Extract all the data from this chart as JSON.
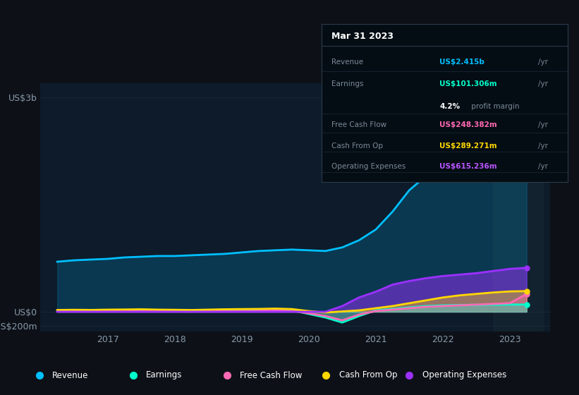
{
  "bg_color": "#0d1117",
  "plot_bg_color": "#0d1b2a",
  "revenue_color": "#00bfff",
  "earnings_color": "#00ffcc",
  "fcf_color": "#ff69b4",
  "cashfromop_color": "#ffd700",
  "opex_color": "#9b30ff",
  "line_width": 2.0,
  "legend_items": [
    "Revenue",
    "Earnings",
    "Free Cash Flow",
    "Cash From Op",
    "Operating Expenses"
  ],
  "legend_colors": [
    "#00bfff",
    "#00ffcc",
    "#ff69b4",
    "#ffd700",
    "#9b30ff"
  ],
  "x": [
    2016.25,
    2016.5,
    2016.75,
    2017.0,
    2017.25,
    2017.5,
    2017.75,
    2018.0,
    2018.25,
    2018.5,
    2018.75,
    2019.0,
    2019.25,
    2019.5,
    2019.75,
    2020.0,
    2020.25,
    2020.5,
    2020.75,
    2021.0,
    2021.25,
    2021.5,
    2021.75,
    2022.0,
    2022.25,
    2022.5,
    2022.75,
    2023.0,
    2023.25
  ],
  "revenue": [
    700,
    720,
    730,
    740,
    760,
    770,
    780,
    780,
    790,
    800,
    810,
    830,
    850,
    860,
    870,
    860,
    850,
    900,
    1000,
    1150,
    1400,
    1700,
    1900,
    2100,
    2200,
    2280,
    2350,
    2400,
    2415
  ],
  "earnings": [
    10,
    15,
    12,
    14,
    16,
    18,
    15,
    12,
    10,
    14,
    18,
    20,
    22,
    25,
    20,
    -30,
    -80,
    -150,
    -60,
    20,
    40,
    60,
    80,
    90,
    95,
    98,
    100,
    101,
    101
  ],
  "fcf": [
    5,
    8,
    6,
    8,
    10,
    12,
    8,
    5,
    3,
    6,
    10,
    12,
    14,
    18,
    12,
    -20,
    -60,
    -120,
    -40,
    10,
    30,
    50,
    70,
    80,
    90,
    100,
    110,
    120,
    248
  ],
  "cashfromop": [
    25,
    28,
    26,
    30,
    32,
    35,
    30,
    28,
    25,
    30,
    35,
    38,
    40,
    45,
    38,
    10,
    -10,
    5,
    20,
    50,
    80,
    120,
    160,
    200,
    230,
    250,
    270,
    285,
    289
  ],
  "opex": [
    0,
    0,
    0,
    0,
    0,
    0,
    0,
    0,
    0,
    0,
    0,
    0,
    0,
    0,
    0,
    0,
    0,
    80,
    200,
    280,
    380,
    430,
    470,
    500,
    520,
    540,
    570,
    600,
    615
  ],
  "shaded_start": 2022.75,
  "shaded_end": 2023.5,
  "ylim": [
    -280,
    3200
  ],
  "xlim": [
    2016.0,
    2023.6
  ],
  "xticks": [
    2017,
    2018,
    2019,
    2020,
    2021,
    2022,
    2023
  ],
  "grid_color": "#1e2d3d",
  "grid_linewidth": 0.5,
  "tick_color": "#8899aa",
  "divider_color": "#2a3a4a",
  "row_divider_color": "#1a2a3a",
  "tooltip": {
    "title": "Mar 31 2023",
    "rows": [
      {
        "label": "Revenue",
        "value": "US$2.415b",
        "suffix": "/yr",
        "color": "#00bfff"
      },
      {
        "label": "Earnings",
        "value": "US$101.306m",
        "suffix": "/yr",
        "color": "#00ffcc"
      },
      {
        "label": "",
        "value": "4.2%",
        "suffix": " profit margin",
        "color": "#ffffff"
      },
      {
        "label": "Free Cash Flow",
        "value": "US$248.382m",
        "suffix": "/yr",
        "color": "#ff69b4"
      },
      {
        "label": "Cash From Op",
        "value": "US$289.271m",
        "suffix": "/yr",
        "color": "#ffd700"
      },
      {
        "label": "Operating Expenses",
        "value": "US$615.236m",
        "suffix": "/yr",
        "color": "#bb55ff"
      }
    ]
  }
}
